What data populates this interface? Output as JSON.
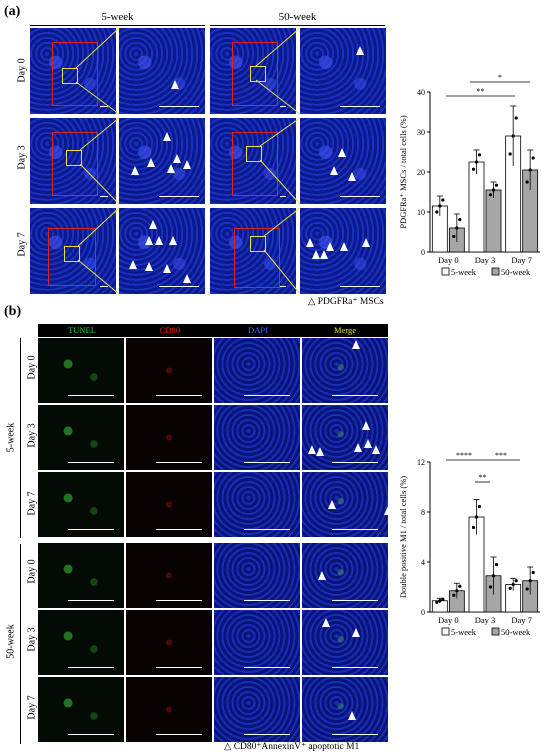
{
  "panel_a": {
    "label": "(a)",
    "groups": [
      "5-week",
      "50-week"
    ],
    "rows": [
      "Day 0",
      "Day 3",
      "Day 7"
    ],
    "marker_legend": "PDGFRa⁺ MSCs",
    "chart_data": {
      "type": "bar",
      "categories": [
        "Day 0",
        "Day 3",
        "Day 7"
      ],
      "series": [
        {
          "name": "5-week",
          "values": [
            11.5,
            22.5,
            29
          ],
          "errors": [
            2.5,
            3,
            7.5
          ],
          "color": "#ffffff"
        },
        {
          "name": "50-week",
          "values": [
            6,
            15.5,
            20.5
          ],
          "errors": [
            3.5,
            2,
            5
          ],
          "color": "#a6a6a6"
        }
      ],
      "ylabel": "PDGFRa⁺ MSCs /  total cells (%)",
      "yticks": [
        "0",
        "10",
        "20",
        "30",
        "40"
      ],
      "ylim": [
        0,
        40
      ],
      "significance": [
        "*",
        "**"
      ],
      "legend": [
        "5-week",
        "50-week"
      ]
    }
  },
  "panel_b": {
    "label": "(b)",
    "channels": [
      "TUNEL",
      "CD80",
      "DAPI",
      "Merge"
    ],
    "channel_colors": [
      "#2ecc40",
      "#ff2020",
      "#3a6bff",
      "#e8e040"
    ],
    "groups": [
      "5-week",
      "50-week"
    ],
    "rows": [
      "Day 0",
      "Day 3",
      "Day 7"
    ],
    "marker_legend": "CD80⁺AnnexinV⁺ apoptotic M1",
    "chart_data": {
      "type": "bar",
      "categories": [
        "Day 0",
        "Day 3",
        "Day 7"
      ],
      "series": [
        {
          "name": "5-week",
          "values": [
            0.9,
            7.6,
            2.2
          ],
          "errors": [
            0.2,
            1.4,
            0.5
          ],
          "color": "#ffffff"
        },
        {
          "name": "50-week",
          "values": [
            1.7,
            2.9,
            2.5
          ],
          "errors": [
            0.6,
            1.5,
            1.1
          ],
          "color": "#a6a6a6"
        }
      ],
      "ylabel": "Double positive M1 /  total cells (%)",
      "yticks": [
        "0",
        "4",
        "8",
        "12"
      ],
      "ylim": [
        0,
        12
      ],
      "significance": [
        "****",
        "***",
        "**"
      ],
      "legend": [
        "5-week",
        "50-week"
      ]
    }
  }
}
